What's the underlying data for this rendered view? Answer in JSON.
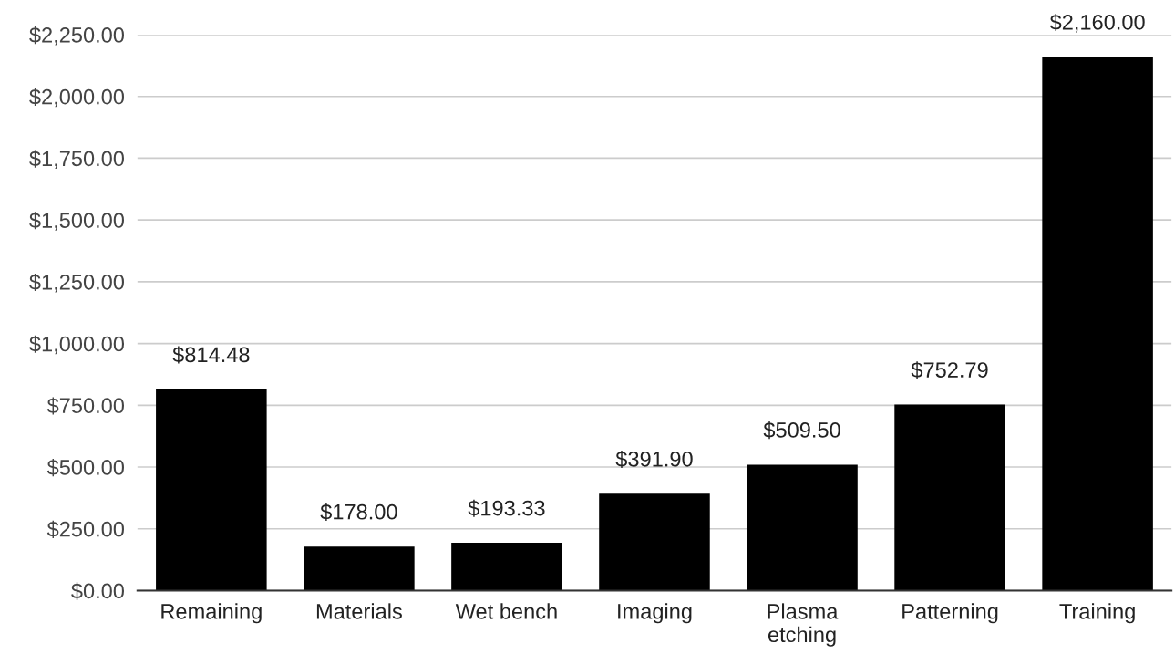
{
  "chart_data": {
    "type": "bar",
    "categories": [
      "Remaining",
      "Materials",
      "Wet bench",
      "Imaging",
      "Plasma\netching",
      "Patterning",
      "Training"
    ],
    "values": [
      814.48,
      178.0,
      193.33,
      391.9,
      509.5,
      752.79,
      2160.0
    ],
    "value_labels": [
      "$814.48",
      "$178.00",
      "$193.33",
      "$391.90",
      "$509.50",
      "$752.79",
      "$2,160.00"
    ],
    "color": "#000000",
    "ylim": [
      0,
      2250
    ],
    "yticks": [
      {
        "value": 0,
        "label": "$0.00"
      },
      {
        "value": 250,
        "label": "$250.00"
      },
      {
        "value": 500,
        "label": "$500.00"
      },
      {
        "value": 750,
        "label": "$750.00"
      },
      {
        "value": 1000,
        "label": "$1,000.00"
      },
      {
        "value": 1250,
        "label": "$1,250.00"
      },
      {
        "value": 1500,
        "label": "$1,500.00"
      },
      {
        "value": 1750,
        "label": "$1,750.00"
      },
      {
        "value": 2000,
        "label": "$2,000.00"
      },
      {
        "value": 2250,
        "label": "$2,250.00"
      }
    ],
    "grid": "y",
    "legend": false
  }
}
